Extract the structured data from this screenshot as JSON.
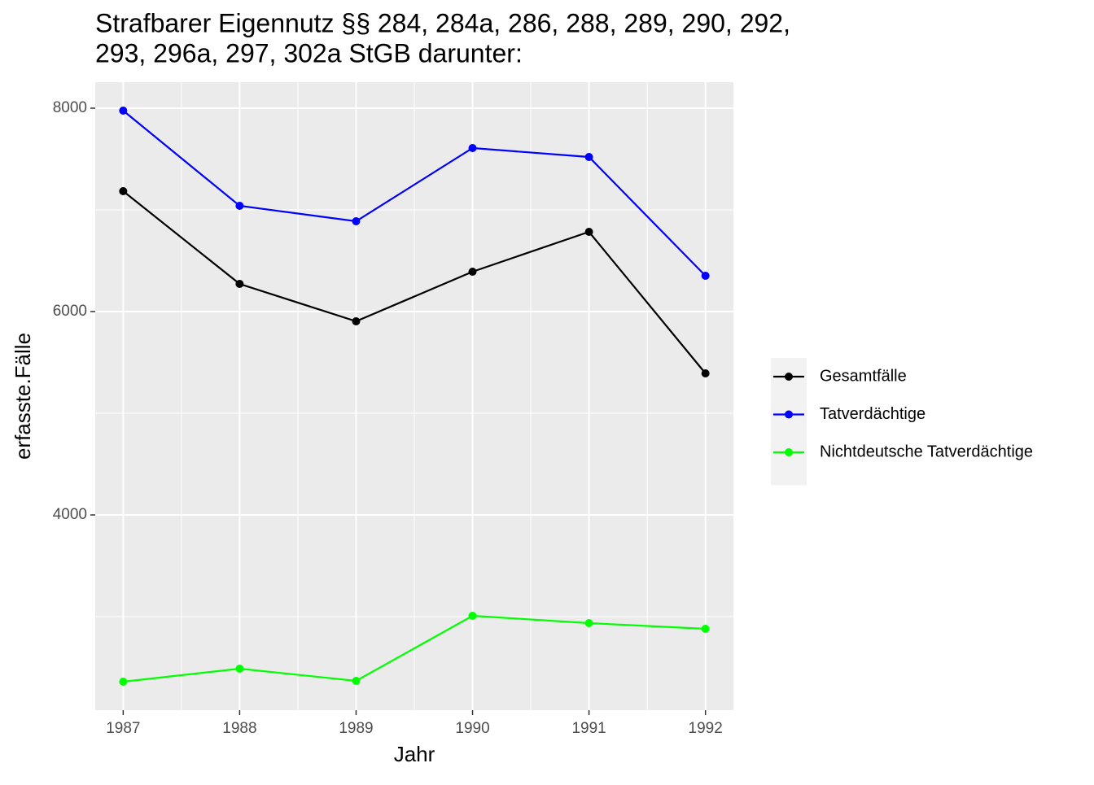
{
  "chart_data": {
    "type": "line",
    "title_lines": [
      "Strafbarer Eigennutz §§ 284, 284a, 286, 288, 289, 290, 292,",
      "293, 296a, 297, 302a StGB darunter:"
    ],
    "x_label": "Jahr",
    "y_label": "erfasste.Fälle",
    "x": [
      1987,
      1988,
      1989,
      1990,
      1991,
      1992
    ],
    "series": [
      {
        "name": "Gesamtfälle",
        "color": "#000000",
        "values": [
          7184,
          6272,
          5904,
          6392,
          6784,
          5392
        ]
      },
      {
        "name": "Tatverdächtige",
        "color": "#0000ff",
        "values": [
          7976,
          7040,
          6888,
          7608,
          7520,
          6352
        ]
      },
      {
        "name": "Nichtdeutsche Tatverdächtige",
        "color": "#00ff00",
        "values": [
          2360,
          2488,
          2368,
          3008,
          2936,
          2880
        ]
      }
    ],
    "xlim": [
      1986.76,
      1992.24
    ],
    "xticks": [
      1987,
      1988,
      1989,
      1990,
      1991,
      1992
    ],
    "ylim": [
      2080,
      8256
    ],
    "yticks": [
      4000,
      6000,
      8000
    ],
    "x_minor_grid": [
      1987.5,
      1988.5,
      1989.5,
      1990.5,
      1991.5
    ],
    "y_minor_grid": [
      3000,
      5000,
      7000
    ],
    "grid": true,
    "legend": "right"
  }
}
